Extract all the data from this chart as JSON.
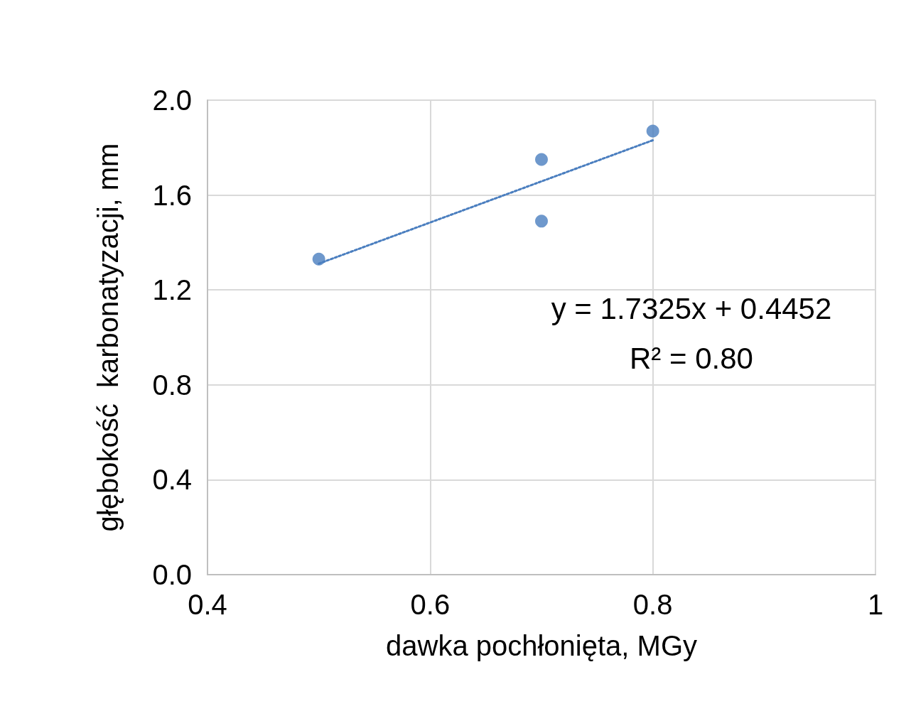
{
  "chart_data": {
    "type": "scatter",
    "xlabel": "dawka pochłonięta, MGy",
    "ylabel": "głębokość  karbonatyzacji, mm",
    "series": [
      {
        "color": "#4a7ebf",
        "marker": "circle",
        "x": [
          0.5,
          0.7,
          0.7,
          0.8
        ],
        "values": [
          1.33,
          1.75,
          1.49,
          1.87
        ]
      },
      {
        "type": "line",
        "color": "#4a7ebf",
        "marker": "none",
        "line_style": "dotted",
        "x": [
          0.5,
          0.8
        ],
        "values": [
          1.311,
          1.831
        ]
      }
    ],
    "annotations": [
      "y = 1.7325x + 0.4452",
      "R² = 0.80"
    ],
    "xlim": [
      0.4,
      1
    ],
    "xticks": [
      0.4,
      0.6,
      0.8,
      {
        "value": 1,
        "label": "1"
      }
    ],
    "ylim": [
      0,
      2
    ],
    "yticks": [
      {
        "value": 0,
        "label": "0.0"
      },
      0.4,
      0.8,
      1.2,
      1.6,
      {
        "value": 2,
        "label": "2.0"
      }
    ],
    "grid": true
  }
}
